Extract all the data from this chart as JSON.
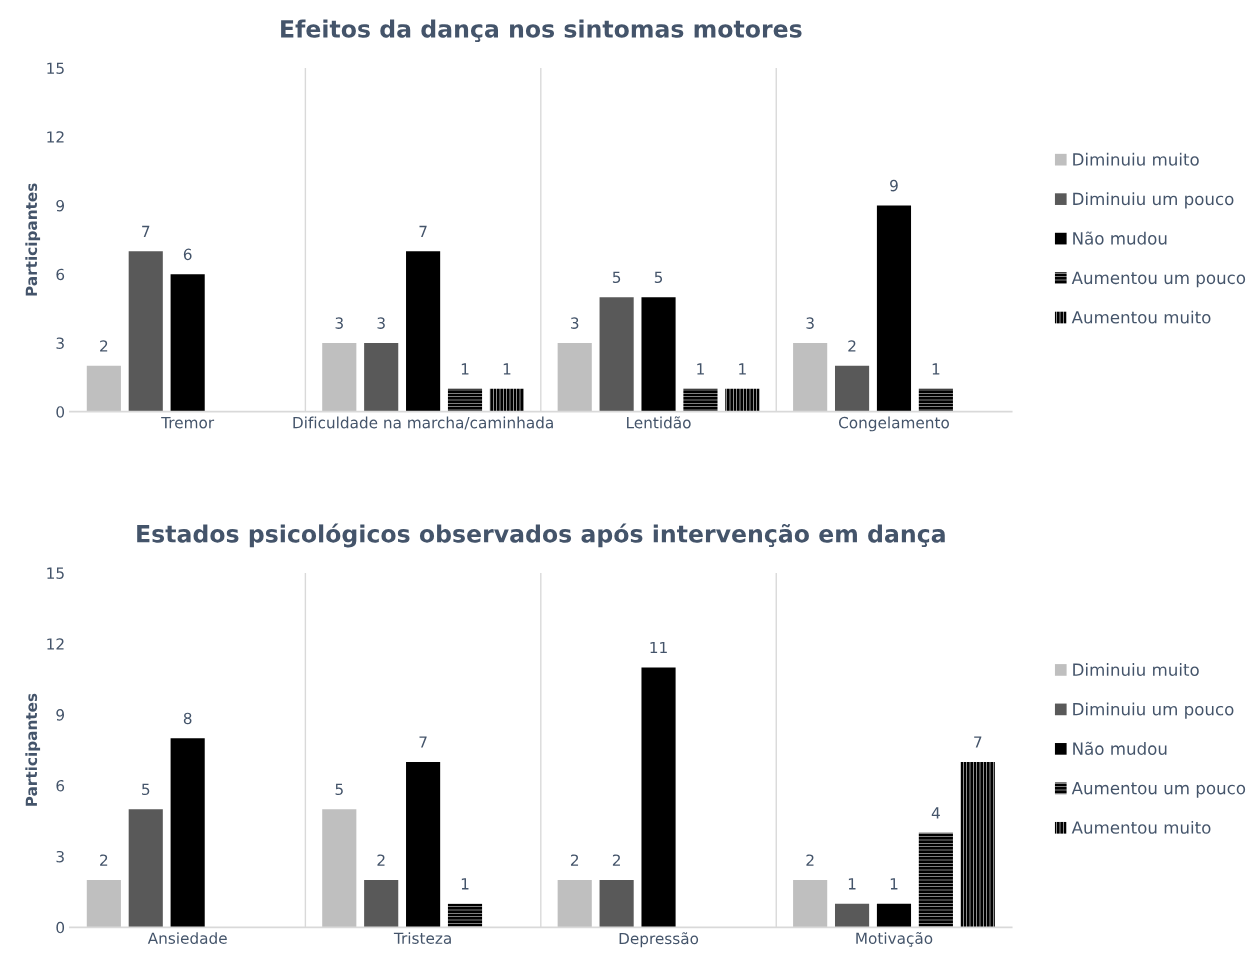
{
  "chart_data": [
    {
      "type": "bar",
      "title": "Efeitos da dança nos sintomas motores",
      "ylabel": "Participantes",
      "categories": [
        "Tremor",
        "Dificuldade na marcha/caminhada",
        "Lentidão",
        "Congelamento"
      ],
      "series": [
        {
          "name": "Diminuiu muito",
          "color": "#bfbfbf",
          "values": [
            2,
            3,
            3,
            3
          ]
        },
        {
          "name": "Diminuiu um pouco",
          "color": "#595959",
          "values": [
            7,
            3,
            5,
            2
          ]
        },
        {
          "name": "Não mudou",
          "color": "#000000",
          "values": [
            6,
            7,
            5,
            9
          ]
        },
        {
          "name": "Aumentou um pouco",
          "color": "#000000",
          "values": [
            null,
            1,
            1,
            1
          ]
        },
        {
          "name": "Aumentou muito",
          "color": "#000000",
          "values": [
            null,
            1,
            1,
            null
          ]
        }
      ],
      "ylim": [
        0,
        15
      ],
      "yticks": [
        0,
        3,
        6,
        9,
        12,
        15
      ],
      "grid": "x",
      "legend": "right",
      "data_labels": true
    },
    {
      "type": "bar",
      "title": "Estados psicológicos observados após intervenção em dança",
      "ylabel": "Participantes",
      "categories": [
        "Ansiedade",
        "Tristeza",
        "Depressão",
        "Motivação"
      ],
      "series": [
        {
          "name": "Diminuiu muito",
          "color": "#bfbfbf",
          "values": [
            2,
            5,
            2,
            2
          ]
        },
        {
          "name": "Diminuiu um pouco",
          "color": "#595959",
          "values": [
            5,
            2,
            2,
            1
          ]
        },
        {
          "name": "Não mudou",
          "color": "#000000",
          "values": [
            8,
            7,
            11,
            1
          ]
        },
        {
          "name": "Aumentou um pouco",
          "color": "#000000",
          "values": [
            null,
            1,
            null,
            4
          ]
        },
        {
          "name": "Aumentou muito",
          "color": "#000000",
          "values": [
            null,
            null,
            null,
            7
          ]
        }
      ],
      "ylim": [
        0,
        15
      ],
      "yticks": [
        0,
        3,
        6,
        9,
        12,
        15
      ],
      "grid": "x",
      "legend": "right",
      "data_labels": true
    }
  ]
}
